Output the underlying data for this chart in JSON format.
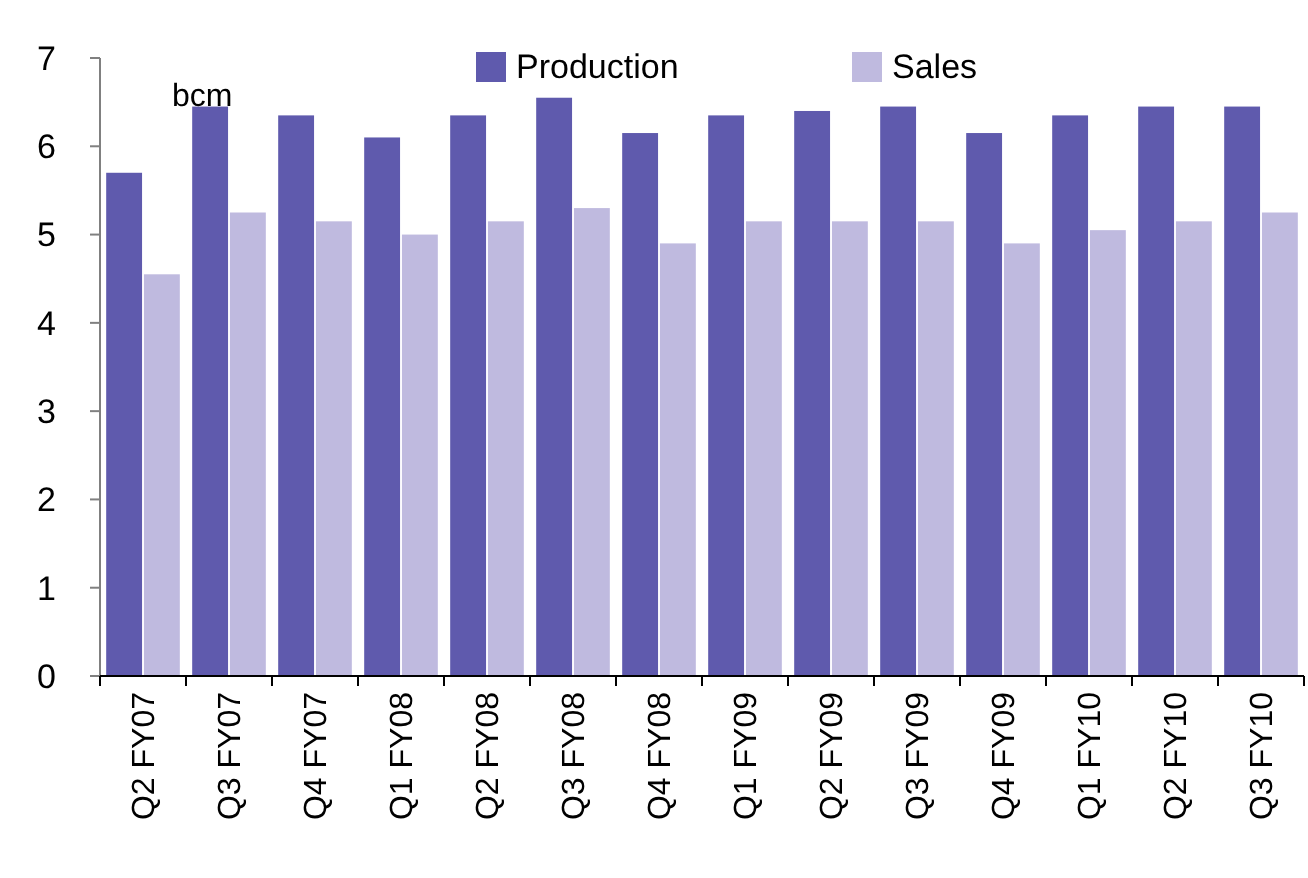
{
  "chart_data": {
    "type": "bar",
    "annotations": [
      "bcm"
    ],
    "categories": [
      "Q2 FY07",
      "Q3 FY07",
      "Q4 FY07",
      "Q1 FY08",
      "Q2 FY08",
      "Q3 FY08",
      "Q4 FY08",
      "Q1 FY09",
      "Q2 FY09",
      "Q3 FY09",
      "Q4 FY09",
      "Q1 FY10",
      "Q2 FY10",
      "Q3 FY10"
    ],
    "series": [
      {
        "name": "Production",
        "color": "#5f5aad",
        "values": [
          5.7,
          6.45,
          6.35,
          6.1,
          6.35,
          6.55,
          6.15,
          6.35,
          6.4,
          6.45,
          6.15,
          6.35,
          6.45,
          6.45
        ]
      },
      {
        "name": "Sales",
        "color": "#bfbadf",
        "values": [
          4.55,
          5.25,
          5.15,
          5.0,
          5.15,
          5.3,
          4.9,
          5.15,
          5.15,
          5.15,
          4.9,
          5.05,
          5.15,
          5.25
        ]
      }
    ],
    "ylim": [
      0,
      7
    ],
    "yticks": [
      0,
      1,
      2,
      3,
      4,
      5,
      6,
      7
    ],
    "grid": false,
    "legend": "top"
  }
}
